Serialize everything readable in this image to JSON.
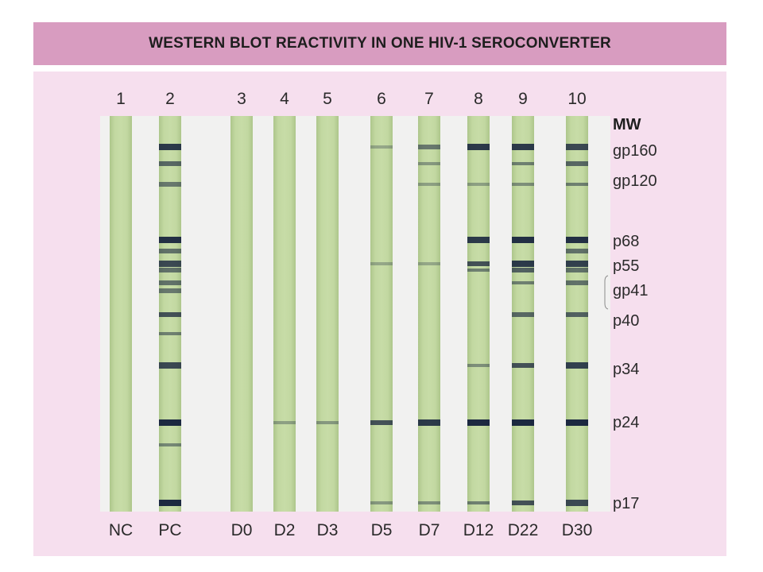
{
  "title": "WESTERN BLOT REACTIVITY IN ONE HIV-1 SEROCONVERTER",
  "mw_header": "MW",
  "colors": {
    "title_bar": "#d89cc0",
    "panel": "#f6dfee",
    "strip": "#c4d9a3",
    "band": "#15213c"
  },
  "lanes": [
    {
      "number": "1",
      "code": "NC",
      "bands": []
    },
    {
      "number": "2",
      "code": "PC",
      "bands": [
        {
          "band": "gp160",
          "intensity": 0.85
        },
        {
          "band": "gp160-lower",
          "intensity": 0.55
        },
        {
          "band": "gp120",
          "intensity": 0.45
        },
        {
          "band": "p68",
          "intensity": 0.9
        },
        {
          "band": "p68-lower",
          "intensity": 0.5
        },
        {
          "band": "p55",
          "intensity": 0.75
        },
        {
          "band": "p55-lower",
          "intensity": 0.5
        },
        {
          "band": "gp41",
          "intensity": 0.5
        },
        {
          "band": "gp41-lower",
          "intensity": 0.45
        },
        {
          "band": "p40",
          "intensity": 0.7
        },
        {
          "band": "p40-lower",
          "intensity": 0.4
        },
        {
          "band": "p34",
          "intensity": 0.75
        },
        {
          "band": "p24",
          "intensity": 0.95
        },
        {
          "band": "p24-lower",
          "intensity": 0.35
        },
        {
          "band": "p17",
          "intensity": 0.95
        }
      ]
    },
    {
      "number": "3",
      "code": "D0",
      "bands": []
    },
    {
      "number": "4",
      "code": "D2",
      "bands": [
        {
          "band": "p24",
          "intensity": 0.2
        }
      ]
    },
    {
      "number": "5",
      "code": "D3",
      "bands": [
        {
          "band": "p24",
          "intensity": 0.25
        }
      ]
    },
    {
      "number": "6",
      "code": "D5",
      "bands": [
        {
          "band": "gp160",
          "intensity": 0.15
        },
        {
          "band": "p55",
          "intensity": 0.15
        },
        {
          "band": "p24",
          "intensity": 0.7
        },
        {
          "band": "p17",
          "intensity": 0.25
        }
      ]
    },
    {
      "number": "7",
      "code": "D7",
      "bands": [
        {
          "band": "gp160",
          "intensity": 0.45
        },
        {
          "band": "gp160-lower",
          "intensity": 0.25
        },
        {
          "band": "gp120",
          "intensity": 0.2
        },
        {
          "band": "p55",
          "intensity": 0.15
        },
        {
          "band": "p24",
          "intensity": 0.85
        },
        {
          "band": "p17",
          "intensity": 0.3
        }
      ]
    },
    {
      "number": "8",
      "code": "D12",
      "bands": [
        {
          "band": "gp160",
          "intensity": 0.85
        },
        {
          "band": "gp120",
          "intensity": 0.2
        },
        {
          "band": "p68",
          "intensity": 0.85
        },
        {
          "band": "p55",
          "intensity": 0.7
        },
        {
          "band": "p55-lower",
          "intensity": 0.4
        },
        {
          "band": "p34",
          "intensity": 0.3
        },
        {
          "band": "p24",
          "intensity": 0.95
        },
        {
          "band": "p17",
          "intensity": 0.4
        }
      ]
    },
    {
      "number": "9",
      "code": "D22",
      "bands": [
        {
          "band": "gp160",
          "intensity": 0.85
        },
        {
          "band": "gp160-lower",
          "intensity": 0.4
        },
        {
          "band": "gp120",
          "intensity": 0.3
        },
        {
          "band": "p68",
          "intensity": 0.9
        },
        {
          "band": "p55",
          "intensity": 0.85
        },
        {
          "band": "p55-lower",
          "intensity": 0.6
        },
        {
          "band": "gp41",
          "intensity": 0.4
        },
        {
          "band": "p40",
          "intensity": 0.55
        },
        {
          "band": "p34",
          "intensity": 0.7
        },
        {
          "band": "p24",
          "intensity": 0.95
        },
        {
          "band": "p17",
          "intensity": 0.7
        }
      ]
    },
    {
      "number": "10",
      "code": "D30",
      "bands": [
        {
          "band": "gp160",
          "intensity": 0.75
        },
        {
          "band": "gp160-lower",
          "intensity": 0.55
        },
        {
          "band": "gp120",
          "intensity": 0.4
        },
        {
          "band": "p68",
          "intensity": 0.9
        },
        {
          "band": "p68-lower",
          "intensity": 0.5
        },
        {
          "band": "p55",
          "intensity": 0.8
        },
        {
          "band": "p55-lower",
          "intensity": 0.5
        },
        {
          "band": "gp41",
          "intensity": 0.5
        },
        {
          "band": "p40",
          "intensity": 0.6
        },
        {
          "band": "p34",
          "intensity": 0.8
        },
        {
          "band": "p24",
          "intensity": 0.95
        },
        {
          "band": "p17",
          "intensity": 0.75
        }
      ]
    }
  ],
  "mw_markers": [
    {
      "label": "gp160"
    },
    {
      "label": "gp120"
    },
    {
      "label": "p68"
    },
    {
      "label": "p55"
    },
    {
      "label": "gp41"
    },
    {
      "label": "p40"
    },
    {
      "label": "p34"
    },
    {
      "label": "p24"
    },
    {
      "label": "p17"
    }
  ]
}
